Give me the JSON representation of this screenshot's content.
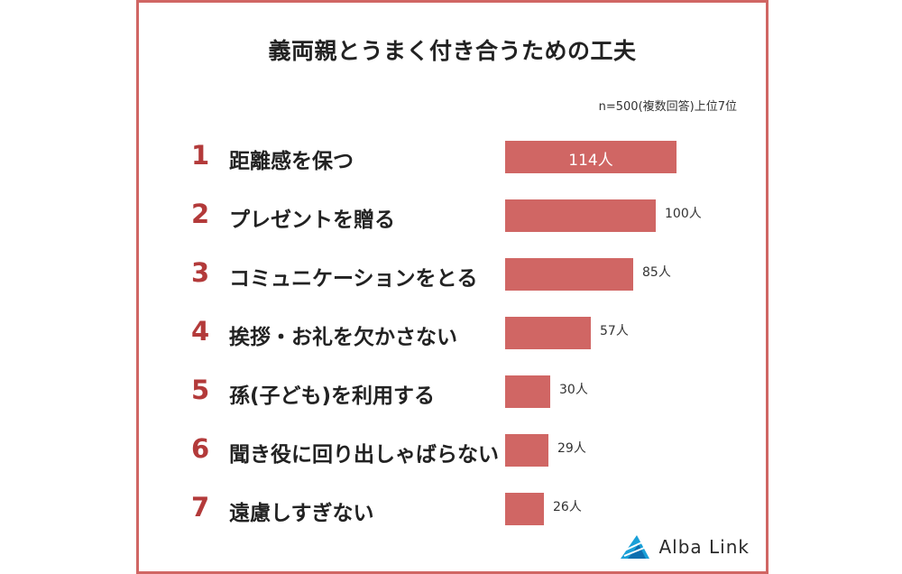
{
  "chart_data": {
    "type": "bar",
    "orientation": "horizontal",
    "title": "義両親とうまく付き合うための工夫",
    "note": "n=500(複数回答)上位7位",
    "categories": [
      "距離感を保つ",
      "プレゼントを贈る",
      "コミュニケーションをとる",
      "挨拶・お礼を欠かさない",
      "孫(子ども)を利用する",
      "聞き役に回り出しゃばらない",
      "遠慮しすぎない"
    ],
    "ranks": [
      "1",
      "2",
      "3",
      "4",
      "5",
      "6",
      "7"
    ],
    "values": [
      114,
      100,
      85,
      57,
      30,
      29,
      26
    ],
    "value_labels": [
      "114人",
      "100人",
      "85人",
      "57人",
      "30人",
      "29人",
      "26人"
    ],
    "unit": "人"
  },
  "brand": {
    "name": "Alba Link"
  },
  "colors": {
    "bar": "#d06664",
    "rank": "#b33a3a",
    "frame": "#d06664",
    "logo": "#1aa0d8"
  }
}
